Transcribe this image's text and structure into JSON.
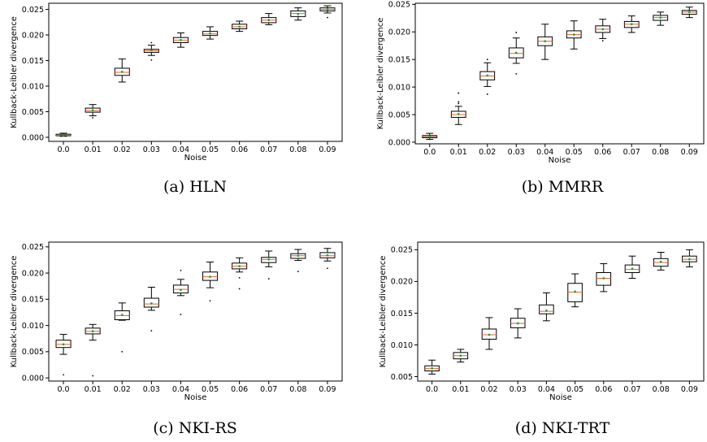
{
  "chart_data": [
    {
      "type": "box",
      "caption": "(a) HLN",
      "xlabel": "Noise",
      "ylabel": "Kullback-Leibler divergence",
      "categories": [
        "0.0",
        "0.01",
        "0.02",
        "0.03",
        "0.04",
        "0.05",
        "0.06",
        "0.07",
        "0.08",
        "0.09"
      ],
      "yticks": [
        "0.000",
        "0.005",
        "0.010",
        "0.015",
        "0.020",
        "0.025"
      ],
      "ylim": [
        -0.0008,
        0.0262
      ],
      "boxes": [
        {
          "whislo": 0.0002,
          "q1": 0.0003,
          "med": 0.0004,
          "mean": 0.0004,
          "q3": 0.0006,
          "whishi": 0.0008,
          "fliers": []
        },
        {
          "whislo": 0.0042,
          "q1": 0.0049,
          "med": 0.0052,
          "mean": 0.0053,
          "q3": 0.0057,
          "whishi": 0.0064,
          "fliers": [
            0.0038
          ]
        },
        {
          "whislo": 0.0108,
          "q1": 0.0121,
          "med": 0.0127,
          "mean": 0.0128,
          "q3": 0.0135,
          "whishi": 0.0153,
          "fliers": []
        },
        {
          "whislo": 0.016,
          "q1": 0.0166,
          "med": 0.0169,
          "mean": 0.017,
          "q3": 0.0172,
          "whishi": 0.018,
          "fliers": [
            0.0185,
            0.0151
          ]
        },
        {
          "whislo": 0.0176,
          "q1": 0.0185,
          "med": 0.019,
          "mean": 0.019,
          "q3": 0.0195,
          "whishi": 0.0204,
          "fliers": []
        },
        {
          "whislo": 0.0192,
          "q1": 0.0199,
          "med": 0.0202,
          "mean": 0.0203,
          "q3": 0.0207,
          "whishi": 0.0216,
          "fliers": []
        },
        {
          "whislo": 0.0207,
          "q1": 0.0212,
          "med": 0.0216,
          "mean": 0.0216,
          "q3": 0.0221,
          "whishi": 0.0227,
          "fliers": []
        },
        {
          "whislo": 0.022,
          "q1": 0.0224,
          "med": 0.0229,
          "mean": 0.0229,
          "q3": 0.0234,
          "whishi": 0.0242,
          "fliers": []
        },
        {
          "whislo": 0.0229,
          "q1": 0.0236,
          "med": 0.0242,
          "mean": 0.0241,
          "q3": 0.0247,
          "whishi": 0.0253,
          "fliers": []
        },
        {
          "whislo": 0.0243,
          "q1": 0.0247,
          "med": 0.025,
          "mean": 0.025,
          "q3": 0.0253,
          "whishi": 0.0257,
          "fliers": [
            0.0234
          ]
        }
      ]
    },
    {
      "type": "box",
      "caption": "(b) MMRR",
      "xlabel": "Noise",
      "ylabel": "Kullback-Leibler divergence",
      "categories": [
        "0.0",
        "0.01",
        "0.02",
        "0.03",
        "0.04",
        "0.05",
        "0.06",
        "0.07",
        "0.08",
        "0.09"
      ],
      "yticks": [
        "0.000",
        "0.005",
        "0.010",
        "0.015",
        "0.020",
        "0.025"
      ],
      "ylim": [
        -0.0003,
        0.0252
      ],
      "boxes": [
        {
          "whislo": 0.0005,
          "q1": 0.0008,
          "med": 0.001,
          "mean": 0.001,
          "q3": 0.0012,
          "whishi": 0.0016,
          "fliers": []
        },
        {
          "whislo": 0.0032,
          "q1": 0.0045,
          "med": 0.005,
          "mean": 0.0051,
          "q3": 0.0056,
          "whishi": 0.0065,
          "fliers": [
            0.007,
            0.0073,
            0.0089
          ]
        },
        {
          "whislo": 0.0101,
          "q1": 0.0113,
          "med": 0.012,
          "mean": 0.0121,
          "q3": 0.0128,
          "whishi": 0.0144,
          "fliers": [
            0.0087,
            0.015
          ]
        },
        {
          "whislo": 0.0143,
          "q1": 0.0153,
          "med": 0.0161,
          "mean": 0.0162,
          "q3": 0.0171,
          "whishi": 0.0189,
          "fliers": [
            0.0124,
            0.0199
          ]
        },
        {
          "whislo": 0.015,
          "q1": 0.0175,
          "med": 0.0183,
          "mean": 0.0183,
          "q3": 0.0191,
          "whishi": 0.0214,
          "fliers": []
        },
        {
          "whislo": 0.0169,
          "q1": 0.0189,
          "med": 0.0195,
          "mean": 0.0195,
          "q3": 0.0202,
          "whishi": 0.022,
          "fliers": []
        },
        {
          "whislo": 0.0188,
          "q1": 0.0199,
          "med": 0.0205,
          "mean": 0.0205,
          "q3": 0.0211,
          "whishi": 0.0223,
          "fliers": [
            0.0184
          ]
        },
        {
          "whislo": 0.0199,
          "q1": 0.0208,
          "med": 0.0214,
          "mean": 0.0214,
          "q3": 0.0219,
          "whishi": 0.0229,
          "fliers": []
        },
        {
          "whislo": 0.0212,
          "q1": 0.0221,
          "med": 0.0226,
          "mean": 0.0226,
          "q3": 0.023,
          "whishi": 0.0236,
          "fliers": []
        },
        {
          "whislo": 0.0226,
          "q1": 0.0232,
          "med": 0.0236,
          "mean": 0.0236,
          "q3": 0.0239,
          "whishi": 0.0245,
          "fliers": []
        }
      ]
    },
    {
      "type": "box",
      "caption": "(c) NKI-RS",
      "xlabel": "Noise",
      "ylabel": "Kullback-Leibler divergence",
      "categories": [
        "0.0",
        "0.01",
        "0.02",
        "0.03",
        "0.04",
        "0.05",
        "0.06",
        "0.07",
        "0.08",
        "0.09"
      ],
      "yticks": [
        "0.000",
        "0.005",
        "0.010",
        "0.015",
        "0.020",
        "0.025"
      ],
      "ylim": [
        -0.0006,
        0.0259
      ],
      "boxes": [
        {
          "whislo": 0.0045,
          "q1": 0.0058,
          "med": 0.0064,
          "mean": 0.0064,
          "q3": 0.0072,
          "whishi": 0.0083,
          "fliers": [
            0.0006
          ]
        },
        {
          "whislo": 0.0072,
          "q1": 0.0084,
          "med": 0.0089,
          "mean": 0.0089,
          "q3": 0.0095,
          "whishi": 0.0102,
          "fliers": [
            0.0004
          ]
        },
        {
          "whislo": 0.011,
          "q1": 0.0111,
          "med": 0.0119,
          "mean": 0.012,
          "q3": 0.0128,
          "whishi": 0.0143,
          "fliers": [
            0.005
          ]
        },
        {
          "whislo": 0.0129,
          "q1": 0.0135,
          "med": 0.0141,
          "mean": 0.0142,
          "q3": 0.0152,
          "whishi": 0.0173,
          "fliers": [
            0.009
          ]
        },
        {
          "whislo": 0.0157,
          "q1": 0.0162,
          "med": 0.0169,
          "mean": 0.0168,
          "q3": 0.0177,
          "whishi": 0.0188,
          "fliers": [
            0.0121,
            0.0205
          ]
        },
        {
          "whislo": 0.0172,
          "q1": 0.0186,
          "med": 0.0193,
          "mean": 0.0193,
          "q3": 0.0202,
          "whishi": 0.0221,
          "fliers": [
            0.0147
          ]
        },
        {
          "whislo": 0.0202,
          "q1": 0.0208,
          "med": 0.0213,
          "mean": 0.0213,
          "q3": 0.0219,
          "whishi": 0.0229,
          "fliers": [
            0.017,
            0.0191
          ]
        },
        {
          "whislo": 0.0212,
          "q1": 0.022,
          "med": 0.0226,
          "mean": 0.0226,
          "q3": 0.023,
          "whishi": 0.0242,
          "fliers": [
            0.0189
          ]
        },
        {
          "whislo": 0.0224,
          "q1": 0.0228,
          "med": 0.0233,
          "mean": 0.0233,
          "q3": 0.0237,
          "whishi": 0.0245,
          "fliers": [
            0.0203
          ]
        },
        {
          "whislo": 0.0223,
          "q1": 0.0229,
          "med": 0.0233,
          "mean": 0.0234,
          "q3": 0.0239,
          "whishi": 0.0247,
          "fliers": [
            0.0209
          ]
        }
      ]
    },
    {
      "type": "box",
      "caption": "(d) NKI-TRT",
      "xlabel": "Noise",
      "ylabel": "Kullback-Leibler divergence",
      "categories": [
        "0.0",
        "0.01",
        "0.02",
        "0.03",
        "0.04",
        "0.05",
        "0.06",
        "0.07",
        "0.08",
        "0.09"
      ],
      "yticks": [
        "0.005",
        "0.010",
        "0.015",
        "0.020",
        "0.025"
      ],
      "ylim": [
        0.0043,
        0.0262
      ],
      "boxes": [
        {
          "whislo": 0.0054,
          "q1": 0.0059,
          "med": 0.0063,
          "mean": 0.0063,
          "q3": 0.0067,
          "whishi": 0.0076,
          "fliers": []
        },
        {
          "whislo": 0.0073,
          "q1": 0.0078,
          "med": 0.0083,
          "mean": 0.0083,
          "q3": 0.0088,
          "whishi": 0.0093,
          "fliers": []
        },
        {
          "whislo": 0.0093,
          "q1": 0.0109,
          "med": 0.0116,
          "mean": 0.0116,
          "q3": 0.0125,
          "whishi": 0.0143,
          "fliers": []
        },
        {
          "whislo": 0.0111,
          "q1": 0.0127,
          "med": 0.0134,
          "mean": 0.0134,
          "q3": 0.0142,
          "whishi": 0.0157,
          "fliers": []
        },
        {
          "whislo": 0.0138,
          "q1": 0.0149,
          "med": 0.0153,
          "mean": 0.0154,
          "q3": 0.0163,
          "whishi": 0.0182,
          "fliers": []
        },
        {
          "whislo": 0.016,
          "q1": 0.0168,
          "med": 0.0183,
          "mean": 0.0184,
          "q3": 0.0197,
          "whishi": 0.0212,
          "fliers": []
        },
        {
          "whislo": 0.0184,
          "q1": 0.0194,
          "med": 0.0205,
          "mean": 0.0205,
          "q3": 0.0214,
          "whishi": 0.0228,
          "fliers": []
        },
        {
          "whislo": 0.0205,
          "q1": 0.0214,
          "med": 0.0219,
          "mean": 0.022,
          "q3": 0.0226,
          "whishi": 0.024,
          "fliers": []
        },
        {
          "whislo": 0.0218,
          "q1": 0.0224,
          "med": 0.023,
          "mean": 0.0231,
          "q3": 0.0236,
          "whishi": 0.0246,
          "fliers": []
        },
        {
          "whislo": 0.0223,
          "q1": 0.0231,
          "med": 0.0235,
          "mean": 0.0235,
          "q3": 0.024,
          "whishi": 0.025,
          "fliers": []
        }
      ]
    }
  ]
}
